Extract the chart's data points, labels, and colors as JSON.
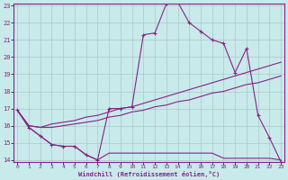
{
  "xlabel": "Windchill (Refroidissement éolien,°C)",
  "ylabel": "",
  "background_color": "#c8eaea",
  "plot_bg_color": "#c8eaea",
  "line_color": "#882288",
  "grid_color": "#aac8c8",
  "border_color": "#882288",
  "x_ticks": [
    0,
    1,
    2,
    3,
    4,
    5,
    6,
    7,
    8,
    9,
    10,
    11,
    12,
    13,
    14,
    15,
    16,
    17,
    18,
    19,
    20,
    21,
    22,
    23
  ],
  "y_ticks": [
    14,
    15,
    16,
    17,
    18,
    19,
    20,
    21,
    22,
    23
  ],
  "xlim": [
    0,
    23
  ],
  "ylim": [
    14,
    23
  ],
  "series_main_x": [
    0,
    1,
    2,
    3,
    4,
    5,
    6,
    7,
    8,
    9,
    10,
    11,
    12,
    13,
    14,
    15,
    16,
    17,
    18,
    19,
    20,
    21,
    22,
    23
  ],
  "series_main_y": [
    16.9,
    15.9,
    15.4,
    14.9,
    14.8,
    14.8,
    14.3,
    14.0,
    14.4,
    14.4,
    14.4,
    14.4,
    14.4,
    14.4,
    14.4,
    14.4,
    14.4,
    14.4,
    14.1,
    14.1,
    14.1,
    14.1,
    14.1,
    14.0
  ],
  "series_upper_x": [
    0,
    1,
    2,
    3,
    4,
    5,
    6,
    7,
    8,
    9,
    10,
    11,
    12,
    13,
    14,
    15,
    16,
    17,
    18,
    19,
    20,
    21,
    22,
    23
  ],
  "series_upper_y": [
    16.9,
    16.0,
    15.9,
    16.1,
    16.2,
    16.3,
    16.5,
    16.6,
    16.8,
    17.0,
    17.1,
    17.3,
    17.5,
    17.7,
    17.9,
    18.1,
    18.3,
    18.5,
    18.7,
    18.9,
    19.1,
    19.3,
    19.5,
    19.7
  ],
  "series_lower_x": [
    0,
    1,
    2,
    3,
    4,
    5,
    6,
    7,
    8,
    9,
    10,
    11,
    12,
    13,
    14,
    15,
    16,
    17,
    18,
    19,
    20,
    21,
    22,
    23
  ],
  "series_lower_y": [
    16.9,
    16.0,
    15.9,
    15.9,
    16.0,
    16.1,
    16.2,
    16.3,
    16.5,
    16.6,
    16.8,
    16.9,
    17.1,
    17.2,
    17.4,
    17.5,
    17.7,
    17.9,
    18.0,
    18.2,
    18.4,
    18.5,
    18.7,
    18.9
  ],
  "series_data_x": [
    0,
    1,
    2,
    3,
    4,
    5,
    6,
    7,
    8,
    9,
    10,
    11,
    12,
    13,
    14,
    15,
    16,
    17,
    18,
    19,
    20,
    21,
    22,
    23
  ],
  "series_data_y": [
    16.9,
    15.9,
    15.4,
    14.9,
    14.8,
    14.8,
    14.3,
    14.0,
    17.0,
    17.0,
    17.1,
    21.3,
    21.4,
    23.1,
    23.2,
    22.0,
    21.5,
    21.0,
    20.8,
    19.1,
    20.5,
    16.6,
    15.3,
    13.9
  ]
}
